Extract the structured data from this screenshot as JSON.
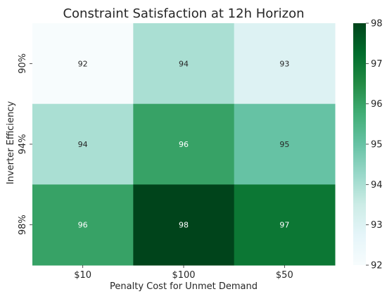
{
  "chart_data": {
    "type": "heatmap",
    "title": "Constraint Satisfaction at 12h Horizon",
    "xlabel": "Penalty Cost for Unmet Demand",
    "ylabel": "Inverter Efficiency",
    "x_categories": [
      "$10",
      "$100",
      "$50"
    ],
    "y_categories": [
      "90%",
      "94%",
      "98%"
    ],
    "values": [
      [
        92,
        94,
        93
      ],
      [
        94,
        96,
        95
      ],
      [
        96,
        98,
        97
      ]
    ],
    "value_labels": [
      [
        "92",
        "94",
        "93"
      ],
      [
        "94",
        "96",
        "95"
      ],
      [
        "96",
        "98",
        "97"
      ]
    ],
    "colorbar": {
      "min": 92,
      "max": 98,
      "ticks": [
        "92",
        "93",
        "94",
        "95",
        "96",
        "97",
        "98"
      ],
      "colormap": "BuGn",
      "stops": [
        "#f7fcfd",
        "#e5f5f9",
        "#ccece6",
        "#99d8c9",
        "#66c2a4",
        "#41ae76",
        "#238b45",
        "#006d2c",
        "#00441b"
      ]
    },
    "grid": false,
    "legend": "colorbar-right"
  }
}
